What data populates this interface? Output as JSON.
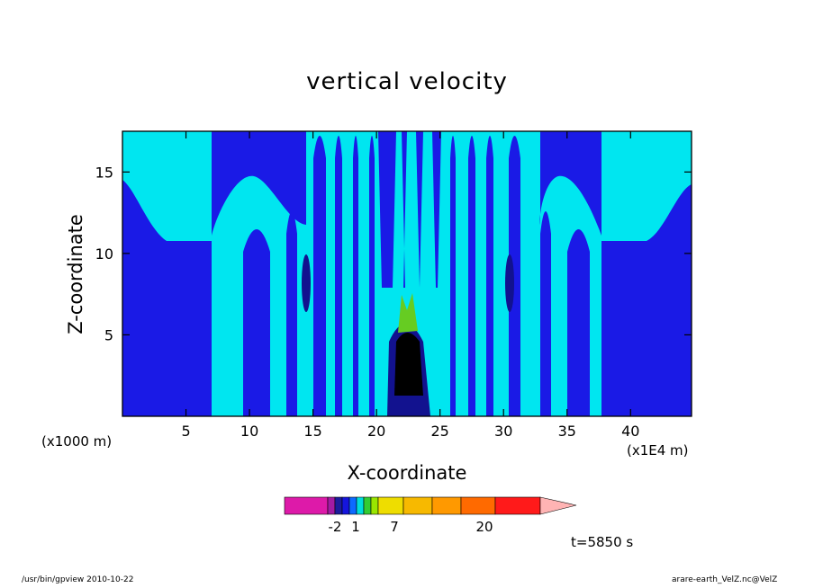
{
  "chart_data": {
    "type": "heatmap",
    "title": "vertical velocity",
    "xlabel": "X-coordinate",
    "ylabel": "Z-coordinate",
    "x_unit": "(x1E4 m)",
    "y_unit": "(x1000 m)",
    "x_ticks": [
      5,
      10,
      15,
      20,
      25,
      30,
      35,
      40
    ],
    "y_ticks": [
      5,
      10,
      15
    ],
    "xlim": [
      0,
      44.8
    ],
    "ylim": [
      0,
      17.5
    ],
    "time_label": "t=5850 s",
    "colorbar": {
      "labels": [
        -2,
        1,
        7,
        20
      ],
      "colors": [
        "#dd1aa9",
        "#a21ba3",
        "#1c1c9c",
        "#1515dd",
        "#0d6aff",
        "#00dddd",
        "#33cc33",
        "#99e600",
        "#eedd00",
        "#f7b900",
        "#ff9900",
        "#ff6a00",
        "#ff1a1a",
        "#ff7878",
        "#ffb4b4"
      ]
    },
    "field_colors": {
      "light": "#00e6f0",
      "blue": "#1a1ae6",
      "dark": "#12128f",
      "green": "#66cc22",
      "black": "#000000"
    },
    "footer_left": "/usr/bin/gpview   2010-10-22",
    "footer_right": "arare-earth_VelZ.nc@VelZ"
  }
}
